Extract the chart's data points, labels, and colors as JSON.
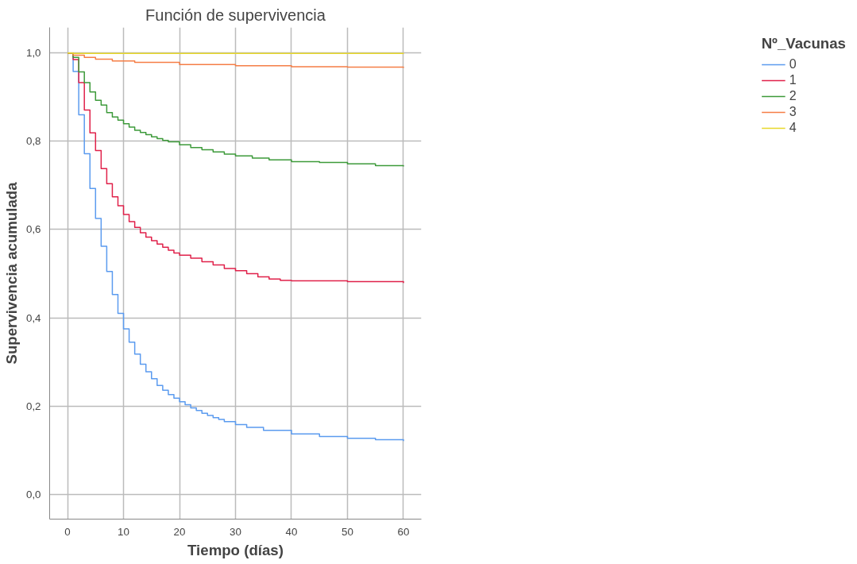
{
  "chart_data": {
    "type": "step",
    "title": "Función de supervivencia",
    "xlabel": "Tiempo (días)",
    "ylabel": "Supervivencia acumulada",
    "legend_title": "Nº_Vacunas",
    "legend": "right",
    "grid": true,
    "marker": "none",
    "line_style": "solid",
    "xlim": [
      -3.2,
      63.2
    ],
    "ylim": [
      -0.056,
      1.058
    ],
    "xticks": [
      0,
      10,
      20,
      30,
      40,
      50,
      60
    ],
    "yticks": [
      {
        "value": 0,
        "label": "0,0"
      },
      {
        "value": 0.2,
        "label": "0,2"
      },
      {
        "value": 0.4,
        "label": "0,4"
      },
      {
        "value": 0.6,
        "label": "0,6"
      },
      {
        "value": 0.8,
        "label": "0,8"
      },
      {
        "value": 1,
        "label": "1,0"
      }
    ],
    "series": [
      {
        "name": "0",
        "color": "#5b9bef",
        "x": [
          0,
          1,
          2,
          3,
          4,
          5,
          6,
          7,
          8,
          9,
          10,
          11,
          12,
          13,
          14,
          15,
          16,
          17,
          18,
          19,
          20,
          21,
          22,
          23,
          24,
          25,
          26,
          27,
          28,
          30,
          32,
          35,
          40,
          45,
          50,
          55,
          60
        ],
        "values": [
          1,
          0.958,
          0.86,
          0.772,
          0.693,
          0.625,
          0.562,
          0.505,
          0.453,
          0.41,
          0.375,
          0.345,
          0.318,
          0.295,
          0.278,
          0.262,
          0.247,
          0.236,
          0.226,
          0.218,
          0.21,
          0.203,
          0.196,
          0.19,
          0.184,
          0.179,
          0.174,
          0.17,
          0.165,
          0.158,
          0.152,
          0.145,
          0.137,
          0.131,
          0.127,
          0.124,
          0.121
        ]
      },
      {
        "name": "1",
        "color": "#e0214a",
        "x": [
          0,
          1,
          2,
          3,
          4,
          5,
          6,
          7,
          8,
          9,
          10,
          11,
          12,
          13,
          14,
          15,
          16,
          17,
          18,
          19,
          20,
          22,
          24,
          26,
          28,
          30,
          32,
          34,
          36,
          38,
          40,
          50,
          60
        ],
        "values": [
          1,
          0.985,
          0.933,
          0.871,
          0.819,
          0.779,
          0.738,
          0.704,
          0.674,
          0.654,
          0.634,
          0.618,
          0.605,
          0.593,
          0.583,
          0.575,
          0.567,
          0.56,
          0.553,
          0.547,
          0.542,
          0.535,
          0.527,
          0.52,
          0.512,
          0.507,
          0.5,
          0.493,
          0.488,
          0.485,
          0.484,
          0.482,
          0.479
        ]
      },
      {
        "name": "2",
        "color": "#3d9a3a",
        "x": [
          0,
          1,
          2,
          3,
          4,
          5,
          6,
          7,
          8,
          9,
          10,
          11,
          12,
          13,
          14,
          15,
          16,
          17,
          18,
          20,
          22,
          24,
          26,
          28,
          30,
          33,
          36,
          40,
          45,
          50,
          55,
          60
        ],
        "values": [
          1,
          0.99,
          0.957,
          0.933,
          0.912,
          0.893,
          0.882,
          0.865,
          0.855,
          0.848,
          0.84,
          0.832,
          0.825,
          0.82,
          0.815,
          0.81,
          0.806,
          0.802,
          0.799,
          0.792,
          0.786,
          0.781,
          0.776,
          0.771,
          0.767,
          0.762,
          0.758,
          0.754,
          0.752,
          0.749,
          0.745,
          0.743
        ]
      },
      {
        "name": "3",
        "color": "#f57e46",
        "x": [
          0,
          1,
          3,
          5,
          8,
          12,
          20,
          30,
          40,
          50,
          60
        ],
        "values": [
          1,
          0.995,
          0.99,
          0.986,
          0.982,
          0.979,
          0.974,
          0.971,
          0.969,
          0.968,
          0.966
        ]
      },
      {
        "name": "4",
        "color": "#e8d82a",
        "x": [
          0,
          1,
          60
        ],
        "values": [
          1,
          0.999,
          0.998
        ]
      }
    ]
  }
}
